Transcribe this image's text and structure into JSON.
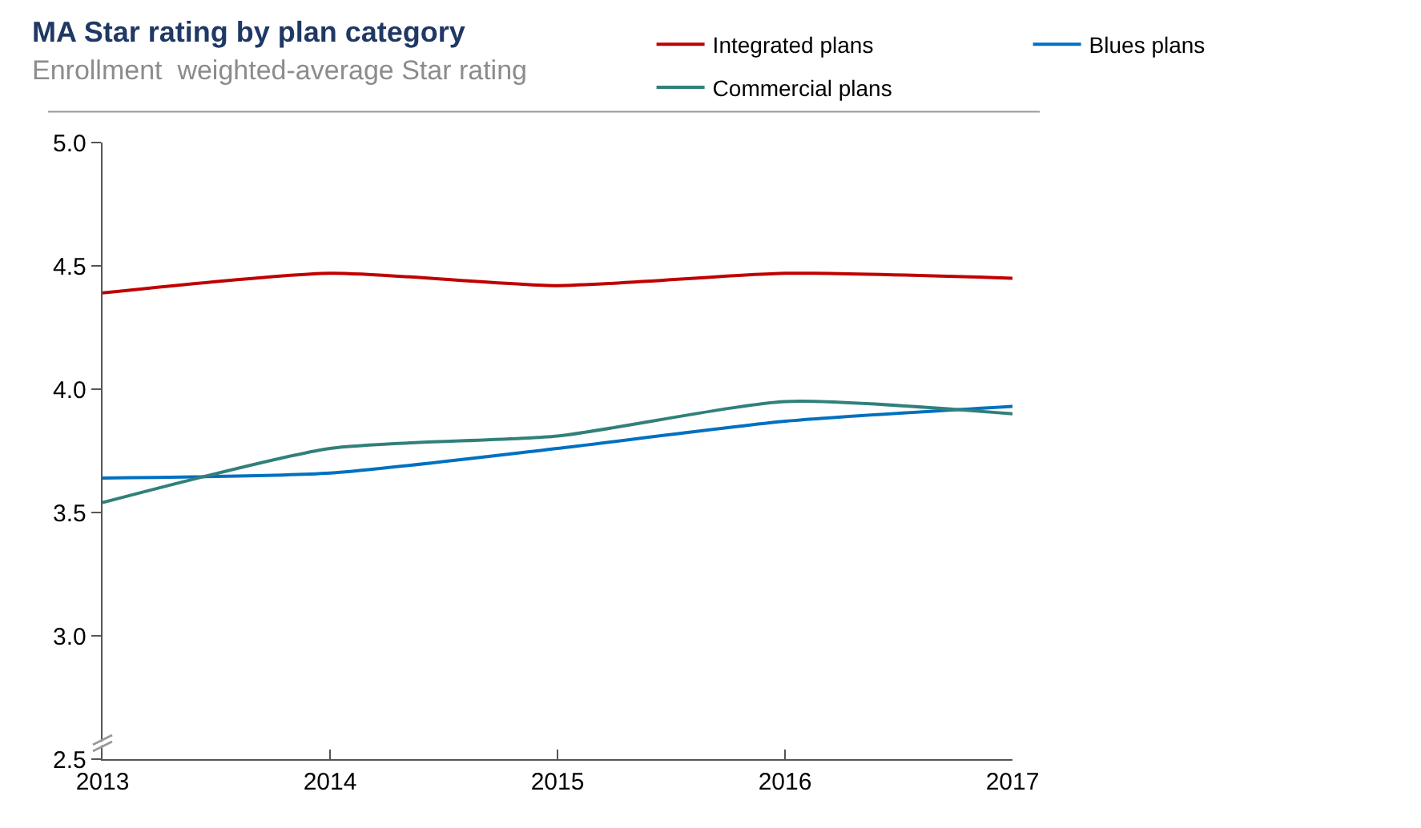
{
  "chart_data": {
    "type": "line",
    "title": "MA Star rating by plan category",
    "subtitle": "Enrollment  weighted-average Star rating",
    "x": [
      2013,
      2014,
      2015,
      2016,
      2017
    ],
    "series": [
      {
        "name": "Integrated plans",
        "color": "#c00000",
        "values": [
          4.39,
          4.47,
          4.42,
          4.47,
          4.45
        ]
      },
      {
        "name": "Blues plans",
        "color": "#0070c0",
        "values": [
          3.64,
          3.66,
          3.76,
          3.87,
          3.93
        ]
      },
      {
        "name": "Commercial plans",
        "color": "#31807a",
        "values": [
          3.54,
          3.76,
          3.81,
          3.95,
          3.9
        ]
      }
    ],
    "xlim": [
      2013,
      2017
    ],
    "xticks": [
      2013,
      2014,
      2015,
      2016,
      2017
    ],
    "ylim": [
      2.5,
      5.0
    ],
    "yticks": [
      {
        "value": 2.5,
        "label": "2.5"
      },
      {
        "value": 3,
        "label": "3.0"
      },
      {
        "value": 3.5,
        "label": "3.5"
      },
      {
        "value": 4,
        "label": "4.0"
      },
      {
        "value": 4.5,
        "label": "4.5"
      },
      {
        "value": 5,
        "label": "5.0"
      }
    ],
    "grid": false,
    "legend": "top right",
    "marker": "none",
    "line_style": "solid"
  }
}
